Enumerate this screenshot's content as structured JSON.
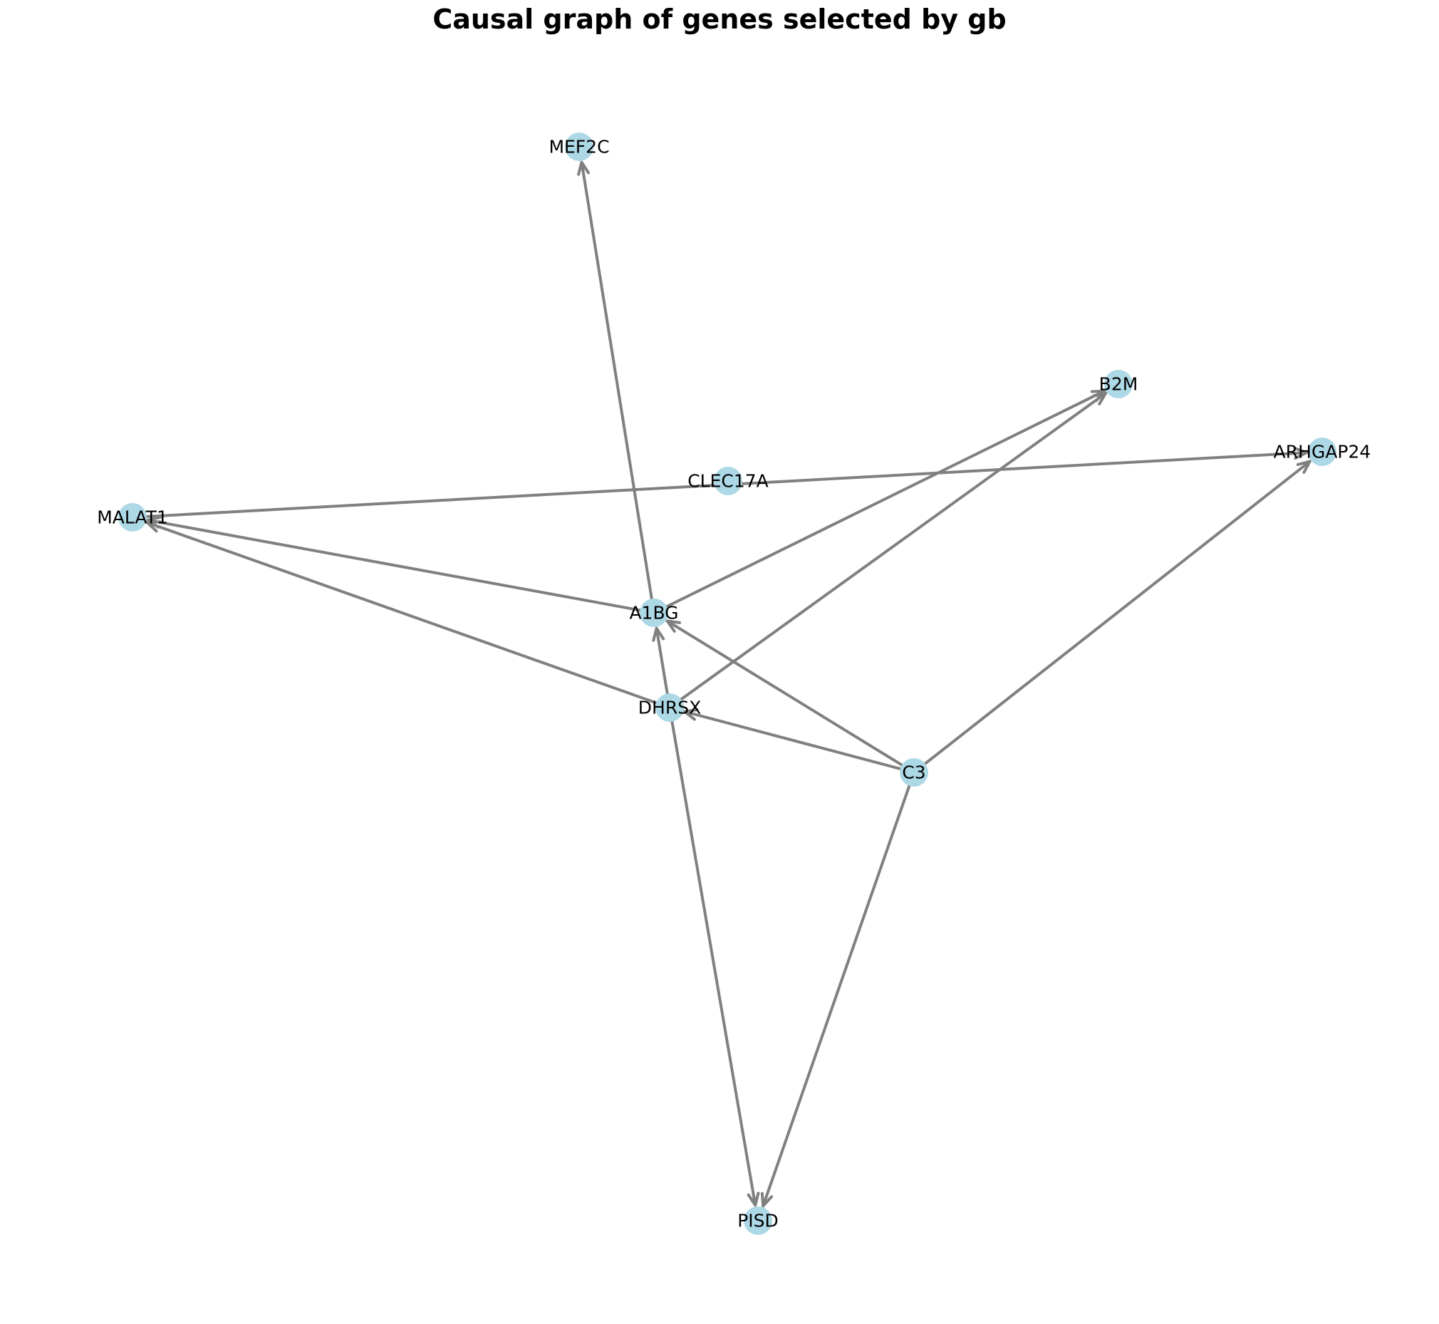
{
  "title": "Causal graph of genes selected by gb",
  "colors": {
    "node_fill": "#add8e6",
    "edge": "#808080",
    "label": "#000000"
  },
  "nodes": [
    {
      "id": "MEF2C",
      "label": "MEF2C"
    },
    {
      "id": "B2M",
      "label": "B2M"
    },
    {
      "id": "ARHGAP24",
      "label": "ARHGAP24"
    },
    {
      "id": "CLEC17A",
      "label": "CLEC17A"
    },
    {
      "id": "MALAT1",
      "label": "MALAT1"
    },
    {
      "id": "A1BG",
      "label": "A1BG"
    },
    {
      "id": "DHRSX",
      "label": "DHRSX"
    },
    {
      "id": "C3",
      "label": "C3"
    },
    {
      "id": "PISD",
      "label": "PISD"
    }
  ],
  "edges": [
    {
      "source": "A1BG",
      "target": "MEF2C"
    },
    {
      "source": "A1BG",
      "target": "B2M"
    },
    {
      "source": "A1BG",
      "target": "MALAT1"
    },
    {
      "source": "DHRSX",
      "target": "B2M"
    },
    {
      "source": "DHRSX",
      "target": "MALAT1"
    },
    {
      "source": "DHRSX",
      "target": "A1BG"
    },
    {
      "source": "DHRSX",
      "target": "PISD"
    },
    {
      "source": "C3",
      "target": "A1BG"
    },
    {
      "source": "C3",
      "target": "DHRSX"
    },
    {
      "source": "C3",
      "target": "ARHGAP24"
    },
    {
      "source": "C3",
      "target": "PISD"
    },
    {
      "source": "MALAT1",
      "target": "ARHGAP24"
    }
  ]
}
